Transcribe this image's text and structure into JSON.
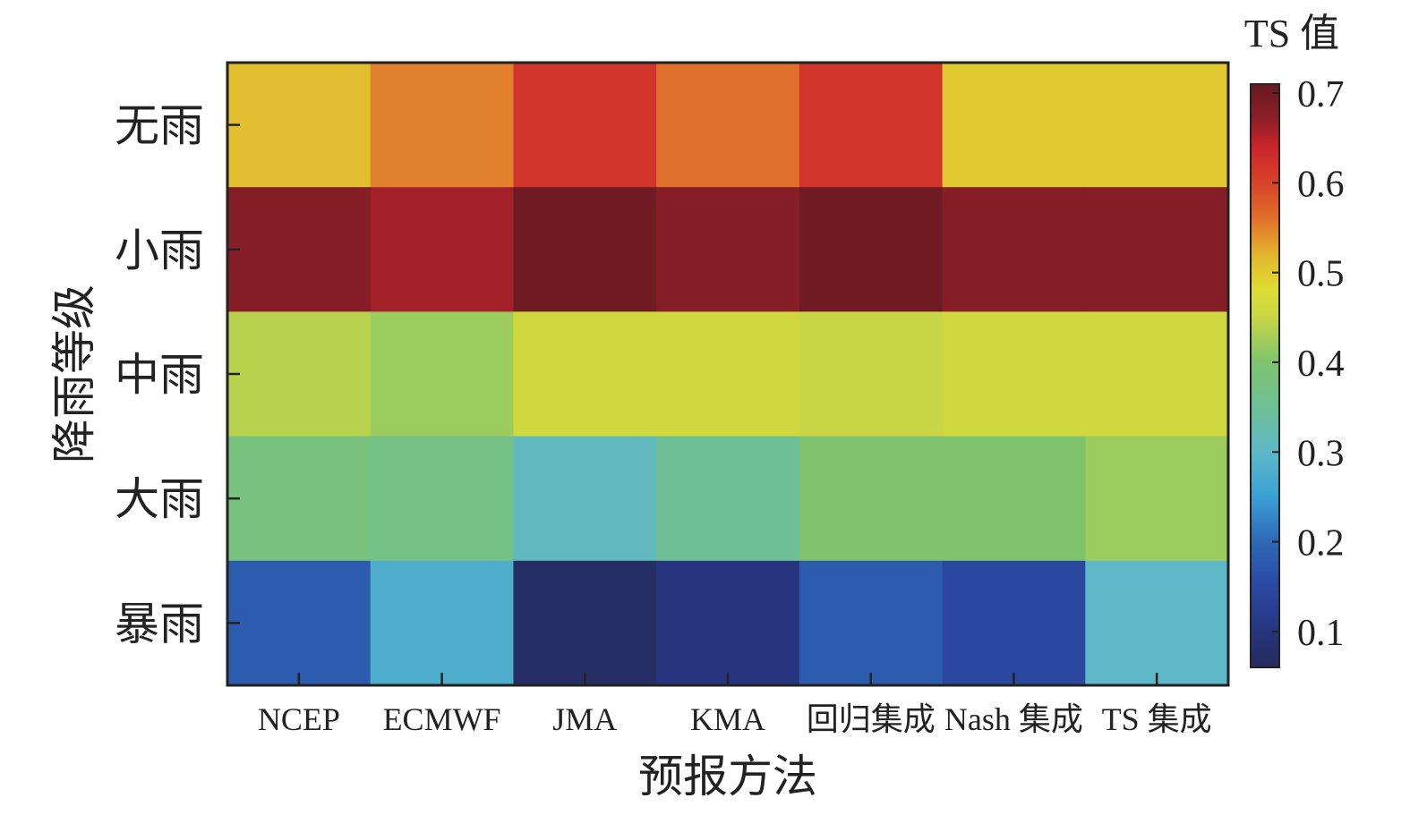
{
  "chart_data": {
    "type": "heatmap",
    "x_categories": [
      "NCEP",
      "ECMWF",
      "JMA",
      "KMA",
      "回归集成",
      "Nash 集成",
      "TS 集成"
    ],
    "y_categories": [
      "无雨",
      "小雨",
      "中雨",
      "大雨",
      "暴雨"
    ],
    "xlabel": "预报方法",
    "ylabel": "降雨等级",
    "values": [
      [
        0.51,
        0.55,
        0.62,
        0.56,
        0.62,
        0.5,
        0.5
      ],
      [
        0.68,
        0.66,
        0.7,
        0.68,
        0.7,
        0.68,
        0.68
      ],
      [
        0.44,
        0.42,
        0.46,
        0.46,
        0.45,
        0.46,
        0.46
      ],
      [
        0.38,
        0.37,
        0.31,
        0.35,
        0.4,
        0.4,
        0.42
      ],
      [
        0.18,
        0.28,
        0.07,
        0.1,
        0.18,
        0.15,
        0.3
      ]
    ],
    "colorbar": {
      "title": "TS 值",
      "range": [
        0.06,
        0.71
      ],
      "ticks": [
        0.1,
        0.2,
        0.3,
        0.4,
        0.5,
        0.6,
        0.7
      ],
      "colormap": "jet-like"
    },
    "colormap_stops": [
      [
        0.06,
        "#262b5e"
      ],
      [
        0.1,
        "#27357e"
      ],
      [
        0.15,
        "#2a48a0"
      ],
      [
        0.2,
        "#2f68b6"
      ],
      [
        0.25,
        "#3aa0d4"
      ],
      [
        0.3,
        "#5eb8c8"
      ],
      [
        0.35,
        "#6fbf96"
      ],
      [
        0.4,
        "#7fc36f"
      ],
      [
        0.45,
        "#c8d645"
      ],
      [
        0.48,
        "#dedd34"
      ],
      [
        0.52,
        "#e3b52e"
      ],
      [
        0.56,
        "#e16f2c"
      ],
      [
        0.6,
        "#d8432a"
      ],
      [
        0.64,
        "#c9252b"
      ],
      [
        0.67,
        "#8f1f28"
      ],
      [
        0.71,
        "#661a20"
      ]
    ]
  }
}
